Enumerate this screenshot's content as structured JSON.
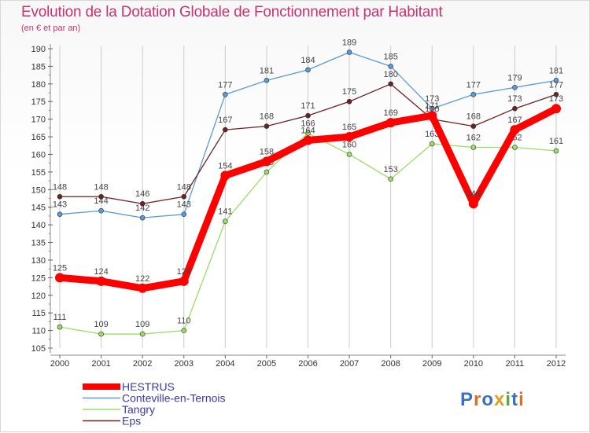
{
  "colors": {
    "title": "#c8326e",
    "grid": "#cccccc",
    "HESTRUS": "#ff0000",
    "Conteville-en-Ternois": "#5a9bd5",
    "Tangry": "#99dd66",
    "Eps": "#6b2222"
  },
  "chart_data": {
    "type": "line",
    "title": "Evolution de la Dotation Globale de Fonctionnement par Habitant",
    "subtitle": "(en € et par an)",
    "xlabel": "",
    "ylabel": "",
    "ylim": [
      105,
      190
    ],
    "yticks": [
      105,
      110,
      115,
      120,
      125,
      130,
      135,
      140,
      145,
      150,
      155,
      160,
      165,
      170,
      175,
      180,
      185,
      190
    ],
    "categories": [
      "2000",
      "2001",
      "2002",
      "2003",
      "2004",
      "2005",
      "2006",
      "2007",
      "2008",
      "2009",
      "2010",
      "2011",
      "2012"
    ],
    "grid": "vertical",
    "legend": "bottom-left",
    "series": [
      {
        "name": "Conteville-en-Ternois",
        "key": "conteville",
        "values": [
          143,
          144,
          142,
          143,
          177,
          181,
          184,
          189,
          185,
          173,
          177,
          179,
          181
        ]
      },
      {
        "name": "Tangry",
        "key": "tangry",
        "values": [
          111,
          109,
          109,
          110,
          141,
          155,
          166,
          160,
          153,
          163,
          162,
          162,
          161
        ]
      },
      {
        "name": "Eps",
        "key": "eps",
        "values": [
          148,
          148,
          146,
          148,
          167,
          168,
          171,
          175,
          180,
          170,
          168,
          173,
          177
        ]
      },
      {
        "name": "HESTRUS",
        "key": "hestrus",
        "values": [
          125,
          124,
          122,
          124,
          154,
          158,
          164,
          165,
          169,
          171,
          146,
          167,
          173
        ]
      }
    ],
    "legend_order": [
      "HESTRUS",
      "Conteville-en-Ternois",
      "Tangry",
      "Eps"
    ]
  },
  "logo": {
    "text": "Proxiti"
  }
}
